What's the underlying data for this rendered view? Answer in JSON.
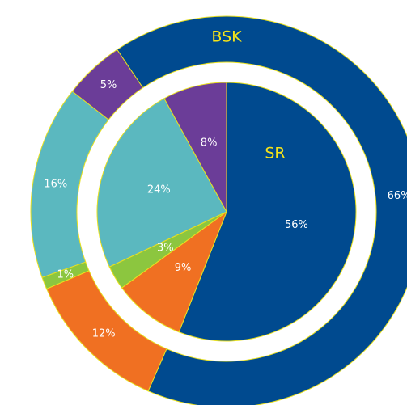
{
  "chart_data": [
    {
      "type": "pie",
      "title": "BSK",
      "values": [
        66,
        12,
        1,
        16,
        5
      ],
      "value_labels": [
        "66%",
        "12%",
        "1%",
        "16%",
        "5%"
      ],
      "colors": [
        "#004a8f",
        "#f07022",
        "#8cc63f",
        "#5bb8bf",
        "#6b3d98"
      ],
      "start_angle": -34
    },
    {
      "type": "pie",
      "title": "SR",
      "values": [
        56,
        9,
        3,
        24,
        8
      ],
      "value_labels": [
        "56%",
        "9%",
        "3%",
        "24%",
        "8%"
      ],
      "colors": [
        "#004a8f",
        "#f07022",
        "#8cc63f",
        "#5bb8bf",
        "#6b3d98"
      ],
      "start_angle": 0
    }
  ]
}
